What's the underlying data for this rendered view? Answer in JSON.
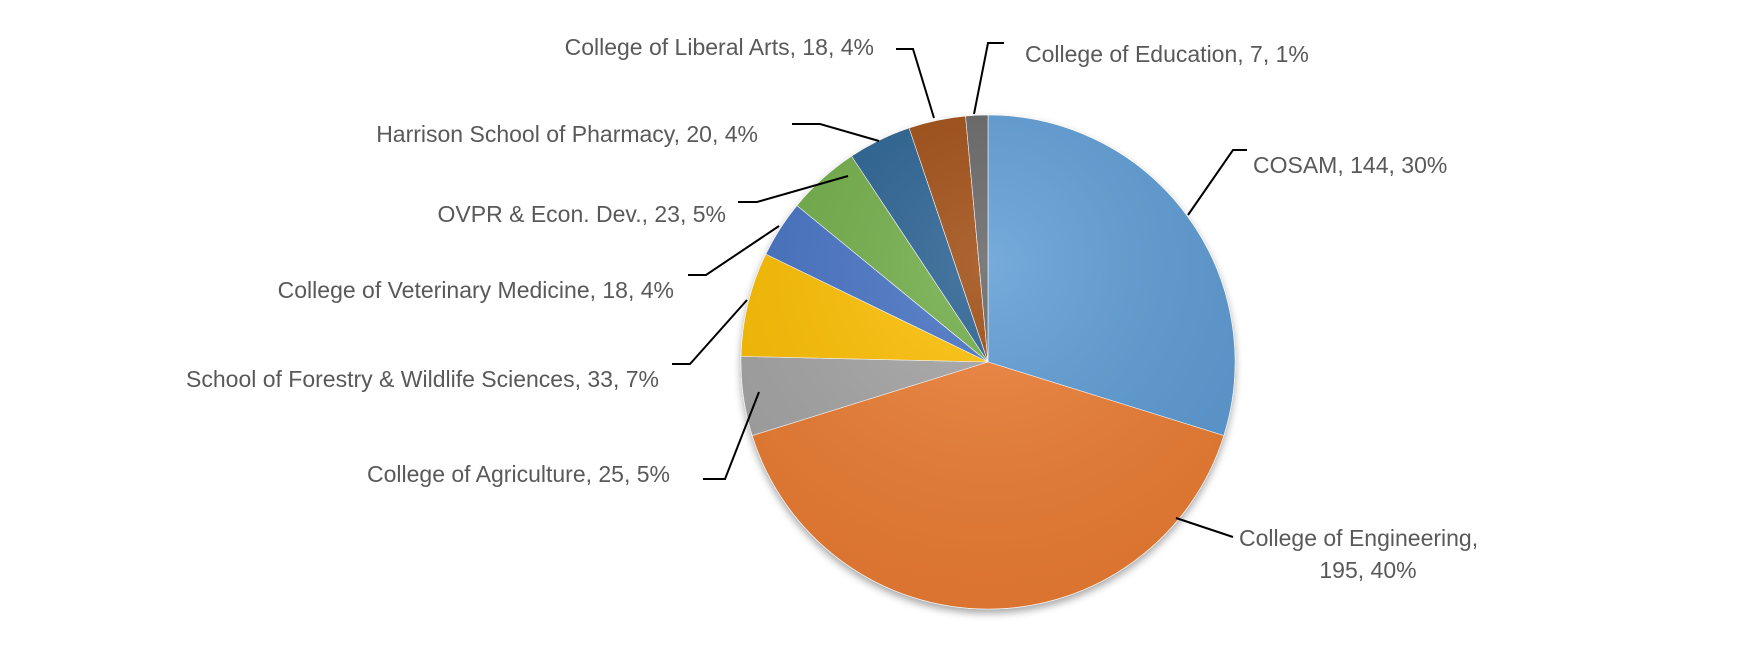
{
  "chart_data": {
    "type": "pie",
    "title": "",
    "slices": [
      {
        "label": "COSAM",
        "value": 144,
        "percent": "30%",
        "color": "#5b9bd5"
      },
      {
        "label": "College of Engineering",
        "value": 195,
        "percent": "40%",
        "color": "#ed7d31"
      },
      {
        "label": "College of Agriculture",
        "value": 25,
        "percent": "5%",
        "color": "#a5a5a5"
      },
      {
        "label": "School of Forestry & Wildlife Sciences",
        "value": 33,
        "percent": "7%",
        "color": "#ffc000"
      },
      {
        "label": "College of Veterinary Medicine",
        "value": 18,
        "percent": "4%",
        "color": "#4472c4"
      },
      {
        "label": "OVPR & Econ. Dev.",
        "value": 23,
        "percent": "5%",
        "color": "#70ad47"
      },
      {
        "label": "Harrison School of Pharmacy",
        "value": 20,
        "percent": "4%",
        "color": "#255e91"
      },
      {
        "label": "College of Liberal Arts",
        "value": 18,
        "percent": "4%",
        "color": "#9e480e"
      },
      {
        "label": "College of Education",
        "value": 7,
        "percent": "1%",
        "color": "#636363"
      }
    ],
    "labels": [
      {
        "text": "COSAM, 144, 30%"
      },
      {
        "text": "College of Engineering,",
        "text2": "195, 40%"
      },
      {
        "text": "College of Agriculture, 25, 5%"
      },
      {
        "text": "School of Forestry & Wildlife Sciences, 33, 7%"
      },
      {
        "text": "College of Veterinary Medicine, 18, 4%"
      },
      {
        "text": "OVPR & Econ. Dev., 23, 5%"
      },
      {
        "text": "Harrison School of Pharmacy, 20, 4%"
      },
      {
        "text": "College of Liberal Arts, 18, 4%"
      },
      {
        "text": "College of Education, 7, 1%"
      }
    ],
    "legend": "none",
    "data_labels": "outside with leader lines"
  }
}
